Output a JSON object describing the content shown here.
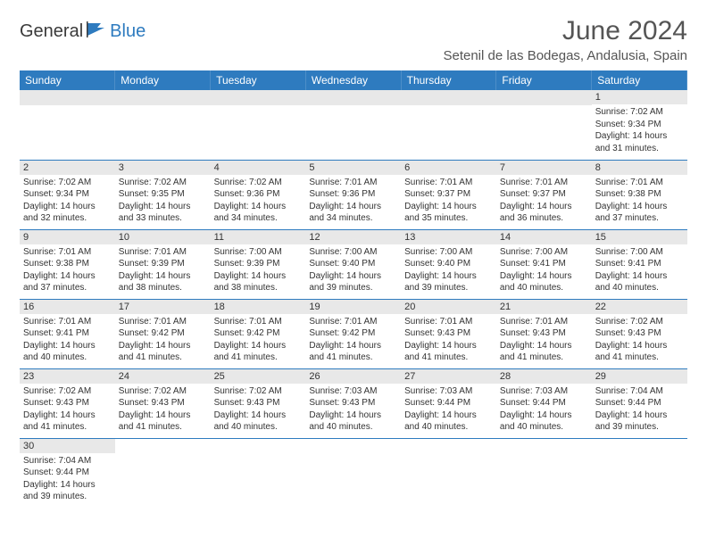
{
  "brand": {
    "text1": "General",
    "text2": "Blue"
  },
  "title": "June 2024",
  "location": "Setenil de las Bodegas, Andalusia, Spain",
  "colors": {
    "accent": "#2e7bbf",
    "header_text": "#ffffff",
    "daynum_bg": "#e8e8e8",
    "text": "#333333"
  },
  "dow": [
    "Sunday",
    "Monday",
    "Tuesday",
    "Wednesday",
    "Thursday",
    "Friday",
    "Saturday"
  ],
  "weeks": [
    [
      null,
      null,
      null,
      null,
      null,
      null,
      {
        "n": "1",
        "sr": "7:02 AM",
        "ss": "9:34 PM",
        "dl": "14 hours and 31 minutes."
      }
    ],
    [
      {
        "n": "2",
        "sr": "7:02 AM",
        "ss": "9:34 PM",
        "dl": "14 hours and 32 minutes."
      },
      {
        "n": "3",
        "sr": "7:02 AM",
        "ss": "9:35 PM",
        "dl": "14 hours and 33 minutes."
      },
      {
        "n": "4",
        "sr": "7:02 AM",
        "ss": "9:36 PM",
        "dl": "14 hours and 34 minutes."
      },
      {
        "n": "5",
        "sr": "7:01 AM",
        "ss": "9:36 PM",
        "dl": "14 hours and 34 minutes."
      },
      {
        "n": "6",
        "sr": "7:01 AM",
        "ss": "9:37 PM",
        "dl": "14 hours and 35 minutes."
      },
      {
        "n": "7",
        "sr": "7:01 AM",
        "ss": "9:37 PM",
        "dl": "14 hours and 36 minutes."
      },
      {
        "n": "8",
        "sr": "7:01 AM",
        "ss": "9:38 PM",
        "dl": "14 hours and 37 minutes."
      }
    ],
    [
      {
        "n": "9",
        "sr": "7:01 AM",
        "ss": "9:38 PM",
        "dl": "14 hours and 37 minutes."
      },
      {
        "n": "10",
        "sr": "7:01 AM",
        "ss": "9:39 PM",
        "dl": "14 hours and 38 minutes."
      },
      {
        "n": "11",
        "sr": "7:00 AM",
        "ss": "9:39 PM",
        "dl": "14 hours and 38 minutes."
      },
      {
        "n": "12",
        "sr": "7:00 AM",
        "ss": "9:40 PM",
        "dl": "14 hours and 39 minutes."
      },
      {
        "n": "13",
        "sr": "7:00 AM",
        "ss": "9:40 PM",
        "dl": "14 hours and 39 minutes."
      },
      {
        "n": "14",
        "sr": "7:00 AM",
        "ss": "9:41 PM",
        "dl": "14 hours and 40 minutes."
      },
      {
        "n": "15",
        "sr": "7:00 AM",
        "ss": "9:41 PM",
        "dl": "14 hours and 40 minutes."
      }
    ],
    [
      {
        "n": "16",
        "sr": "7:01 AM",
        "ss": "9:41 PM",
        "dl": "14 hours and 40 minutes."
      },
      {
        "n": "17",
        "sr": "7:01 AM",
        "ss": "9:42 PM",
        "dl": "14 hours and 41 minutes."
      },
      {
        "n": "18",
        "sr": "7:01 AM",
        "ss": "9:42 PM",
        "dl": "14 hours and 41 minutes."
      },
      {
        "n": "19",
        "sr": "7:01 AM",
        "ss": "9:42 PM",
        "dl": "14 hours and 41 minutes."
      },
      {
        "n": "20",
        "sr": "7:01 AM",
        "ss": "9:43 PM",
        "dl": "14 hours and 41 minutes."
      },
      {
        "n": "21",
        "sr": "7:01 AM",
        "ss": "9:43 PM",
        "dl": "14 hours and 41 minutes."
      },
      {
        "n": "22",
        "sr": "7:02 AM",
        "ss": "9:43 PM",
        "dl": "14 hours and 41 minutes."
      }
    ],
    [
      {
        "n": "23",
        "sr": "7:02 AM",
        "ss": "9:43 PM",
        "dl": "14 hours and 41 minutes."
      },
      {
        "n": "24",
        "sr": "7:02 AM",
        "ss": "9:43 PM",
        "dl": "14 hours and 41 minutes."
      },
      {
        "n": "25",
        "sr": "7:02 AM",
        "ss": "9:43 PM",
        "dl": "14 hours and 40 minutes."
      },
      {
        "n": "26",
        "sr": "7:03 AM",
        "ss": "9:43 PM",
        "dl": "14 hours and 40 minutes."
      },
      {
        "n": "27",
        "sr": "7:03 AM",
        "ss": "9:44 PM",
        "dl": "14 hours and 40 minutes."
      },
      {
        "n": "28",
        "sr": "7:03 AM",
        "ss": "9:44 PM",
        "dl": "14 hours and 40 minutes."
      },
      {
        "n": "29",
        "sr": "7:04 AM",
        "ss": "9:44 PM",
        "dl": "14 hours and 39 minutes."
      }
    ],
    [
      {
        "n": "30",
        "sr": "7:04 AM",
        "ss": "9:44 PM",
        "dl": "14 hours and 39 minutes."
      },
      null,
      null,
      null,
      null,
      null,
      null
    ]
  ],
  "labels": {
    "sunrise": "Sunrise:",
    "sunset": "Sunset:",
    "daylight": "Daylight:"
  }
}
